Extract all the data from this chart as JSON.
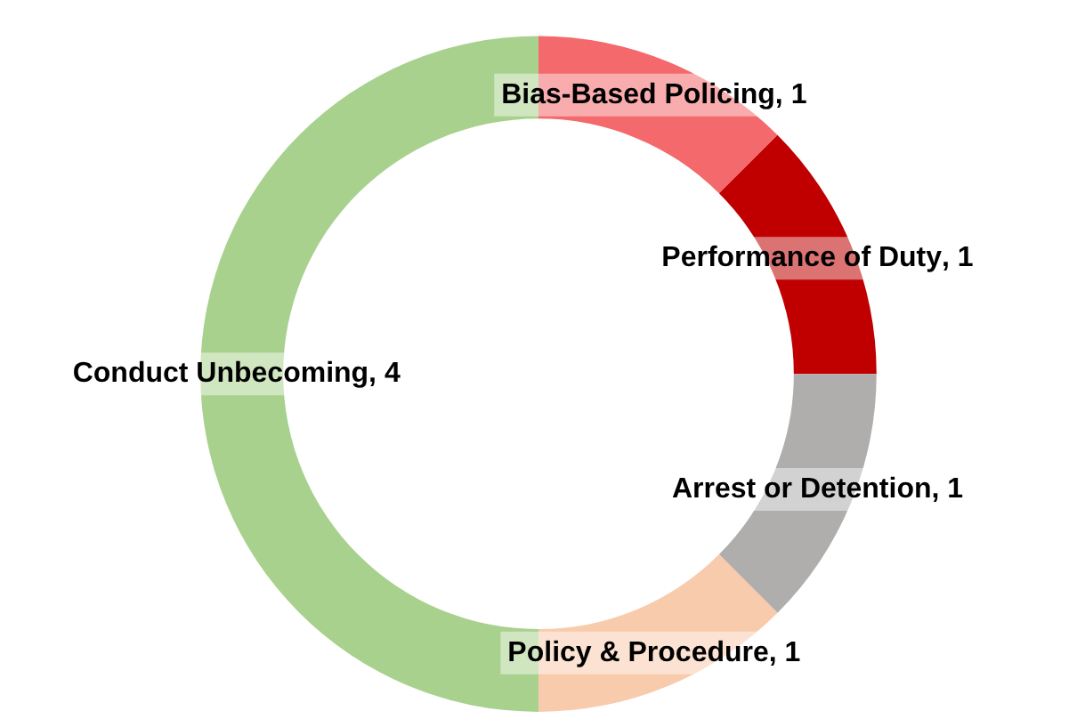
{
  "chart_data": {
    "type": "donut",
    "categories": [
      "Bias-Based Policing",
      "Performance of Duty",
      "Arrest or Detention",
      "Policy & Procedure",
      "Conduct Unbecoming"
    ],
    "values": [
      1,
      1,
      1,
      1,
      4
    ],
    "value_labels": [
      ", 1",
      ", 1",
      ", 1",
      ", 1",
      ", 4"
    ],
    "colors": [
      "#f4696b",
      "#c00000",
      "#b0adad",
      "#f8cbad",
      "#a9d18e"
    ]
  }
}
